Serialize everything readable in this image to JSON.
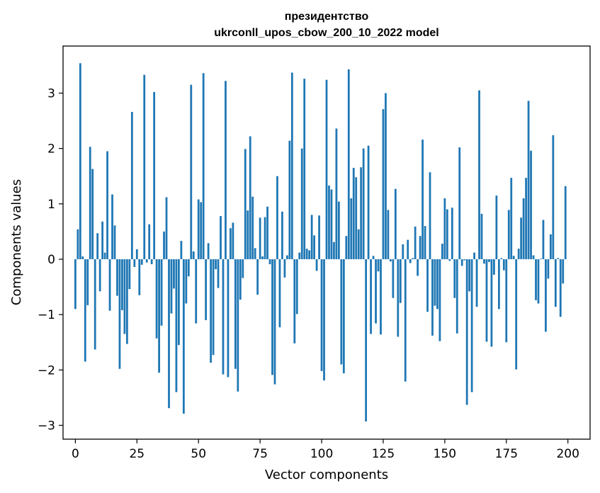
{
  "chart_data": {
    "type": "bar",
    "title_line1": "президентство",
    "title_line2": "ukrconll_upos_cbow_200_10_2022 model",
    "xlabel": "Vector components",
    "ylabel": "Components values",
    "xlim": [
      -5,
      209
    ],
    "ylim": [
      -3.25,
      3.85
    ],
    "xticks": [
      0,
      25,
      50,
      75,
      100,
      125,
      150,
      175,
      200
    ],
    "yticks": [
      -3,
      -2,
      -1,
      0,
      1,
      2,
      3
    ],
    "ytick_labels": [
      "−3",
      "−2",
      "−1",
      "0",
      "1",
      "2",
      "3"
    ],
    "bar_color": "#1f77b4",
    "values": [
      -0.9,
      0.54,
      3.54,
      0.05,
      -1.85,
      -0.83,
      2.03,
      1.63,
      -1.63,
      0.47,
      -0.58,
      0.68,
      0.12,
      1.95,
      -0.93,
      1.17,
      0.61,
      -0.66,
      -1.98,
      -0.92,
      -1.35,
      -1.53,
      -0.54,
      2.66,
      -0.14,
      0.18,
      -0.65,
      -0.1,
      3.33,
      -0.06,
      0.63,
      -0.09,
      3.02,
      -1.43,
      -2.05,
      -1.2,
      0.5,
      1.12,
      -2.69,
      -0.98,
      -0.53,
      -2.4,
      -1.55,
      0.33,
      -2.79,
      -0.8,
      -0.31,
      3.15,
      0.14,
      -1.16,
      1.08,
      1.03,
      3.36,
      -1.1,
      0.29,
      -1.87,
      -1.73,
      -0.18,
      -0.52,
      0.78,
      -2.08,
      3.22,
      -2.13,
      0.56,
      0.66,
      -1.98,
      -2.39,
      -0.73,
      -0.34,
      1.99,
      0.88,
      2.22,
      1.13,
      0.2,
      -0.64,
      0.75,
      0.05,
      0.76,
      0.95,
      -0.09,
      -2.09,
      -2.26,
      1.5,
      -1.23,
      0.86,
      -0.33,
      0.07,
      2.14,
      3.37,
      -1.52,
      -0.99,
      0.12,
      2.0,
      3.26,
      0.19,
      0.16,
      0.8,
      0.43,
      -0.21,
      0.79,
      -2.02,
      -2.19,
      3.24,
      1.33,
      1.26,
      0.31,
      2.36,
      1.04,
      -1.9,
      -2.06,
      0.42,
      3.43,
      1.1,
      1.65,
      1.48,
      0.54,
      1.66,
      2.0,
      -2.93,
      2.05,
      -1.35,
      0.06,
      -1.16,
      -0.22,
      -1.36,
      2.71,
      3.0,
      0.89,
      -0.04,
      -0.7,
      1.27,
      -1.4,
      -0.79,
      0.27,
      -2.21,
      0.35,
      -0.07,
      0.02,
      0.59,
      -0.3,
      0.42,
      2.16,
      0.6,
      -0.95,
      1.57,
      -1.38,
      -0.84,
      -0.9,
      -1.48,
      0.28,
      1.1,
      0.9,
      -0.03,
      0.93,
      -0.7,
      -1.34,
      2.02,
      -0.12,
      -0.02,
      -2.63,
      -0.58,
      -2.4,
      0.12,
      -0.86,
      3.05,
      0.82,
      -0.08,
      -1.49,
      -0.05,
      -1.58,
      -0.28,
      1.15,
      -0.9,
      0.02,
      -0.2,
      -1.5,
      0.89,
      1.47,
      0.06,
      -1.99,
      0.19,
      0.75,
      1.1,
      1.47,
      2.86,
      1.96,
      0.07,
      -0.74,
      -0.8,
      0.01,
      0.71,
      -1.31,
      -0.35,
      0.45,
      2.24,
      -0.86,
      0.02,
      -1.04,
      -0.44,
      1.32
    ]
  }
}
